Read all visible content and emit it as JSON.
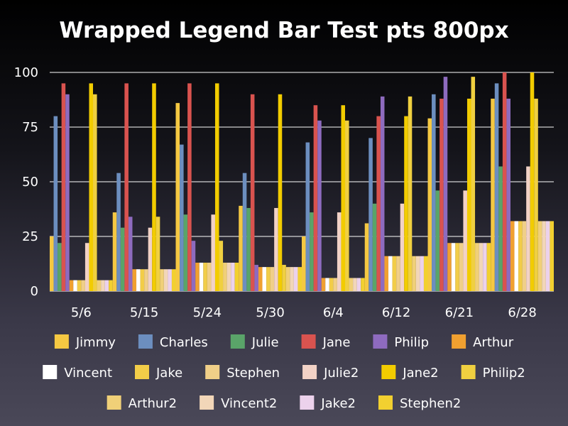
{
  "chart_data": {
    "type": "bar",
    "title": "Wrapped Legend Bar Test pts 800px",
    "xlabel": "",
    "ylabel": "",
    "ylim": [
      0,
      100
    ],
    "yticks": [
      0,
      25,
      50,
      75,
      100
    ],
    "grid": true,
    "legend_position": "bottom",
    "categories": [
      "5/6",
      "5/15",
      "5/24",
      "5/30",
      "6/4",
      "6/12",
      "6/21",
      "6/28"
    ],
    "series": [
      {
        "name": "Jimmy",
        "color": "#f5c842",
        "values": [
          25,
          36,
          86,
          39,
          25,
          31,
          79,
          88
        ]
      },
      {
        "name": "Charles",
        "color": "#6c8ebf",
        "values": [
          80,
          54,
          67,
          54,
          68,
          70,
          90,
          95
        ]
      },
      {
        "name": "Julie",
        "color": "#5aa469",
        "values": [
          22,
          29,
          35,
          38,
          36,
          40,
          46,
          57
        ]
      },
      {
        "name": "Jane",
        "color": "#d9534f",
        "values": [
          95,
          95,
          95,
          90,
          85,
          80,
          88,
          100
        ]
      },
      {
        "name": "Philip",
        "color": "#8e6bbf",
        "values": [
          90,
          34,
          23,
          12,
          78,
          89,
          98,
          88
        ]
      },
      {
        "name": "Arthur",
        "color": "#f0a030",
        "values": [
          5,
          10,
          13,
          11,
          6,
          16,
          22,
          32
        ]
      },
      {
        "name": "Vincent",
        "color": "#ffffff",
        "values": [
          5,
          10,
          13,
          11,
          6,
          16,
          22,
          32
        ]
      },
      {
        "name": "Jake",
        "color": "#f2cd48",
        "values": [
          5,
          10,
          13,
          11,
          6,
          16,
          22,
          32
        ]
      },
      {
        "name": "Stephen",
        "color": "#f0cf88",
        "values": [
          5,
          10,
          13,
          11,
          6,
          16,
          22,
          32
        ]
      },
      {
        "name": "Julie2",
        "color": "#f2d2c6",
        "values": [
          22,
          29,
          35,
          38,
          36,
          40,
          46,
          57
        ]
      },
      {
        "name": "Jane2",
        "color": "#f2cc00",
        "values": [
          95,
          95,
          95,
          90,
          85,
          80,
          88,
          100
        ]
      },
      {
        "name": "Philip2",
        "color": "#f0d040",
        "values": [
          90,
          34,
          23,
          12,
          78,
          89,
          98,
          88
        ]
      },
      {
        "name": "Arthur2",
        "color": "#f0d078",
        "values": [
          5,
          10,
          13,
          11,
          6,
          16,
          22,
          32
        ]
      },
      {
        "name": "Vincent2",
        "color": "#f2d6b8",
        "values": [
          5,
          10,
          13,
          11,
          6,
          16,
          22,
          32
        ]
      },
      {
        "name": "Jake2",
        "color": "#ecd2ec",
        "values": [
          5,
          10,
          13,
          11,
          6,
          16,
          22,
          32
        ]
      },
      {
        "name": "Stephen2",
        "color": "#f2d030",
        "values": [
          5,
          10,
          13,
          11,
          6,
          16,
          22,
          32
        ]
      }
    ],
    "legend_rows": [
      [
        "Jimmy",
        "Charles",
        "Julie",
        "Jane",
        "Philip",
        "Arthur"
      ],
      [
        "Vincent",
        "Jake",
        "Stephen",
        "Julie2",
        "Jane2",
        "Philip2"
      ],
      [
        "Arthur2",
        "Vincent2",
        "Jake2",
        "Stephen2"
      ]
    ]
  }
}
